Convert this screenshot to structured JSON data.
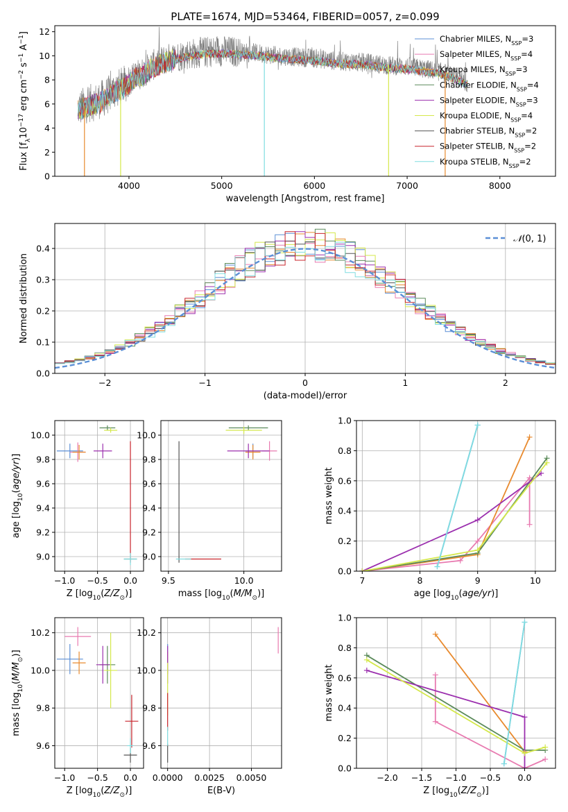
{
  "colors": {
    "Chabrier MILES": "#5b8fd6",
    "Salpeter MILES": "#e87ab0",
    "Kroupa MILES": "#e88a2e",
    "Chabrier ELODIE": "#5a8a5a",
    "Salpeter ELODIE": "#9b2fae",
    "Kroupa ELODIE": "#d4e84a",
    "Chabrier STELIB": "#555555",
    "Salpeter STELIB": "#c8242b",
    "Kroupa STELIB": "#7fdde0"
  },
  "chart_data": [
    {
      "type": "line",
      "title": "PLATE=1674, MJD=53464, FIBERID=0057, z=0.099",
      "xlabel": "wavelength [Angstrom, rest frame]",
      "ylabel": "Flux [f_λ10^-17 erg cm^-2 s^-1 A^-1]",
      "xlim": [
        3200,
        8600
      ],
      "ylim": [
        0,
        12.5
      ],
      "xticks": [
        4000,
        5000,
        6000,
        7000,
        8000
      ],
      "yticks": [
        0,
        2,
        4,
        6,
        8,
        10,
        12
      ],
      "grid": false,
      "legend_position": "right",
      "legend": [
        "Chabrier MILES, N_SSP=3",
        "Salpeter MILES, N_SSP=4",
        "Kroupa MILES, N_SSP=3",
        "Chabrier ELODIE, N_SSP=4",
        "Salpeter ELODIE, N_SSP=3",
        "Kroupa ELODIE, N_SSP=4",
        "Chabrier STELIB, N_SSP=2",
        "Salpeter STELIB, N_SSP=2",
        "Kroupa STELIB, N_SSP=2"
      ],
      "spectrum_envelope": {
        "x": [
          3450,
          3550,
          3650,
          3750,
          3850,
          3950,
          4050,
          4150,
          4250,
          4400,
          4600,
          4800,
          5000,
          5200,
          5400,
          5600,
          5800,
          6000,
          6200,
          6400,
          6600,
          6800,
          7000,
          7200,
          7400,
          7500,
          7650
        ],
        "y": [
          5.6,
          6.0,
          6.2,
          6.6,
          7.2,
          7.6,
          8.3,
          8.6,
          9.2,
          9.7,
          10.1,
          10.3,
          10.4,
          10.3,
          10.2,
          10.0,
          9.9,
          9.8,
          9.6,
          9.5,
          9.4,
          9.2,
          9.1,
          8.9,
          8.6,
          8.3,
          7.8
        ]
      },
      "model_dips": [
        {
          "x": 3520,
          "y": 0
        },
        {
          "x": 3910,
          "y": 0
        },
        {
          "x": 5460,
          "y": 0
        },
        {
          "x": 6800,
          "y": 0
        },
        {
          "x": 7410,
          "y": 0
        }
      ]
    },
    {
      "type": "line",
      "xlabel": "(data-model)/error",
      "ylabel": "Normed distribution",
      "xlim": [
        -2.5,
        2.5
      ],
      "ylim": [
        0,
        0.48
      ],
      "xticks": [
        -2,
        -1,
        0,
        1,
        2
      ],
      "yticks": [
        0.0,
        0.1,
        0.2,
        0.3,
        0.4
      ],
      "grid": true,
      "legend_position": "top-right",
      "legend": [
        "𝒩(0, 1)"
      ],
      "histogram_bin_width": 0.1,
      "histogram_values_approx": [
        0.022,
        0.024,
        0.028,
        0.032,
        0.035,
        0.04,
        0.05,
        0.06,
        0.07,
        0.08,
        0.09,
        0.1,
        0.12,
        0.14,
        0.15,
        0.17,
        0.19,
        0.21,
        0.22,
        0.24,
        0.26,
        0.28,
        0.3,
        0.32,
        0.34,
        0.35,
        0.36,
        0.38,
        0.39,
        0.4,
        0.41,
        0.41,
        0.4,
        0.39,
        0.38,
        0.38,
        0.37,
        0.35,
        0.33,
        0.31,
        0.28,
        0.26,
        0.23,
        0.21,
        0.19,
        0.17,
        0.15,
        0.13,
        0.12,
        0.1,
        0.09,
        0.08,
        0.07,
        0.06,
        0.05,
        0.045,
        0.04,
        0.035,
        0.03,
        0.027,
        0.022,
        0.02,
        0.018,
        0.015,
        0.013,
        0.012,
        0.01,
        0.009,
        0.008,
        0.007
      ]
    },
    {
      "type": "scatter",
      "xlabel": "Z [log10(Z/Z⊙)]",
      "ylabel": "age [log10(age/yr)]",
      "xlim": [
        -1.15,
        0.2
      ],
      "ylim": [
        8.88,
        10.12
      ],
      "xticks": [
        -1.0,
        -0.5,
        0.0
      ],
      "yticks": [
        9.0,
        9.2,
        9.4,
        9.6,
        9.8,
        10.0
      ],
      "grid": true,
      "points": [
        {
          "name": "Chabrier MILES",
          "x": -0.92,
          "y": 9.87,
          "xerr": 0.2,
          "yerr": 0.06
        },
        {
          "name": "Salpeter MILES",
          "x": -0.8,
          "y": 9.86,
          "xerr": 0.12,
          "yerr": 0.08
        },
        {
          "name": "Kroupa MILES",
          "x": -0.78,
          "y": 9.86,
          "xerr": 0.1,
          "yerr": 0.06
        },
        {
          "name": "Chabrier ELODIE",
          "x": -0.35,
          "y": 10.06,
          "xerr": 0.12,
          "yerr": 0.02
        },
        {
          "name": "Salpeter ELODIE",
          "x": -0.42,
          "y": 9.87,
          "xerr": 0.14,
          "yerr": 0.06
        },
        {
          "name": "Kroupa ELODIE",
          "x": -0.3,
          "y": 10.04,
          "xerr": 0.1,
          "yerr": 0.02
        },
        {
          "name": "Chabrier STELIB",
          "x": 0.0,
          "y": 8.98,
          "xerr": 0.1,
          "yerr": 0.0
        },
        {
          "name": "Salpeter STELIB",
          "x": 0.0,
          "y": 9.45,
          "xerr": 0.0,
          "yerr": 0.5
        },
        {
          "name": "Kroupa STELIB",
          "x": 0.0,
          "y": 8.98,
          "xerr": 0.1,
          "yerr": 0.05
        }
      ]
    },
    {
      "type": "scatter",
      "xlabel": "mass [log10(M/M⊙)]",
      "ylabel": "",
      "xlim": [
        9.45,
        10.25
      ],
      "ylim": [
        8.88,
        10.12
      ],
      "xticks": [
        9.5,
        10.0
      ],
      "yticks": [
        9.0,
        9.2,
        9.4,
        9.6,
        9.8,
        10.0
      ],
      "grid": true,
      "points": [
        {
          "name": "Chabrier MILES",
          "x": 10.06,
          "y": 9.87,
          "xerr": 0.05,
          "yerr": 0.06
        },
        {
          "name": "Salpeter MILES",
          "x": 10.17,
          "y": 9.87,
          "xerr": 0.05,
          "yerr": 0.08
        },
        {
          "name": "Kroupa MILES",
          "x": 10.06,
          "y": 9.86,
          "xerr": 0.05,
          "yerr": 0.06
        },
        {
          "name": "Chabrier ELODIE",
          "x": 10.03,
          "y": 10.06,
          "xerr": 0.13,
          "yerr": 0.02
        },
        {
          "name": "Salpeter ELODIE",
          "x": 10.03,
          "y": 9.87,
          "xerr": 0.14,
          "yerr": 0.06
        },
        {
          "name": "Kroupa ELODIE",
          "x": 10.0,
          "y": 10.04,
          "xerr": 0.12,
          "yerr": 0.03
        },
        {
          "name": "Chabrier STELIB",
          "x": 9.57,
          "y": 9.45,
          "xerr": 0.0,
          "yerr": 0.5
        },
        {
          "name": "Salpeter STELIB",
          "x": 9.73,
          "y": 8.98,
          "xerr": 0.12,
          "yerr": 0.0
        },
        {
          "name": "Kroupa STELIB",
          "x": 9.6,
          "y": 8.98,
          "xerr": 0.05,
          "yerr": 0.0
        }
      ]
    },
    {
      "type": "line",
      "xlabel": "age [log10(age/yr)]",
      "ylabel": "mass weight",
      "xlim": [
        6.9,
        10.35
      ],
      "ylim": [
        0,
        1.0
      ],
      "xticks": [
        7,
        8,
        9,
        10
      ],
      "yticks": [
        0.0,
        0.2,
        0.4,
        0.6,
        0.8,
        1.0
      ],
      "grid": true,
      "series": [
        {
          "name": "Chabrier MILES",
          "x": [
            8.3,
            9.0
          ],
          "y": [
            0.03,
            0.97
          ]
        },
        {
          "name": "Salpeter MILES",
          "x": [
            7.0,
            8.7,
            9.0,
            9.9,
            9.9
          ],
          "y": [
            0.0,
            0.07,
            0.2,
            0.62,
            0.31
          ]
        },
        {
          "name": "Kroupa MILES",
          "x": [
            7.0,
            9.0,
            9.9
          ],
          "y": [
            0.0,
            0.11,
            0.89
          ]
        },
        {
          "name": "Chabrier ELODIE",
          "x": [
            7.0,
            9.0,
            10.2
          ],
          "y": [
            0.0,
            0.12,
            0.75
          ]
        },
        {
          "name": "Salpeter ELODIE",
          "x": [
            7.0,
            9.0,
            10.1
          ],
          "y": [
            0.0,
            0.34,
            0.65
          ]
        },
        {
          "name": "Kroupa ELODIE",
          "x": [
            7.0,
            9.0,
            10.2
          ],
          "y": [
            0.0,
            0.14,
            0.72
          ]
        },
        {
          "name": "Kroupa STELIB",
          "x": [
            8.3,
            9.0
          ],
          "y": [
            0.03,
            0.97
          ]
        }
      ]
    },
    {
      "type": "scatter",
      "xlabel": "Z [log10(Z/Z⊙)]",
      "ylabel": "mass [log10(M/M⊙)]",
      "xlim": [
        -1.15,
        0.2
      ],
      "ylim": [
        9.48,
        10.28
      ],
      "xticks": [
        -1.0,
        -0.5,
        0.0
      ],
      "yticks": [
        9.6,
        9.8,
        10.0,
        10.2
      ],
      "grid": true,
      "points": [
        {
          "name": "Chabrier MILES",
          "x": -0.92,
          "y": 10.06,
          "xerr": 0.2,
          "yerr": 0.08
        },
        {
          "name": "Salpeter MILES",
          "x": -0.8,
          "y": 10.18,
          "xerr": 0.2,
          "yerr": 0.05
        },
        {
          "name": "Kroupa MILES",
          "x": -0.78,
          "y": 10.04,
          "xerr": 0.1,
          "yerr": 0.06
        },
        {
          "name": "Chabrier ELODIE",
          "x": -0.35,
          "y": 10.03,
          "xerr": 0.12,
          "yerr": 0.1
        },
        {
          "name": "Salpeter ELODIE",
          "x": -0.42,
          "y": 10.03,
          "xerr": 0.1,
          "yerr": 0.1
        },
        {
          "name": "Kroupa ELODIE",
          "x": -0.3,
          "y": 10.0,
          "xerr": 0.1,
          "yerr": 0.2
        },
        {
          "name": "Chabrier STELIB",
          "x": 0.0,
          "y": 9.55,
          "xerr": 0.1,
          "yerr": 0.04
        },
        {
          "name": "Salpeter STELIB",
          "x": 0.02,
          "y": 9.73,
          "xerr": 0.1,
          "yerr": 0.14
        },
        {
          "name": "Kroupa STELIB",
          "x": 0.0,
          "y": 9.6,
          "xerr": 0.05,
          "yerr": 0.04
        }
      ]
    },
    {
      "type": "scatter",
      "xlabel": "E(B-V)",
      "ylabel": "",
      "xlim": [
        -0.0004,
        0.0068
      ],
      "ylim": [
        9.48,
        10.28
      ],
      "xticks": [
        0.0,
        0.0025,
        0.005
      ],
      "xticklabels": [
        "0.0000",
        "0.0025",
        "0.0050"
      ],
      "yticks": [
        9.6,
        9.8,
        10.0,
        10.2
      ],
      "grid": true,
      "points": [
        {
          "name": "Chabrier MILES",
          "x": 0.0,
          "y": 10.06,
          "xerr": 0.0,
          "yerr": 0.08
        },
        {
          "name": "Salpeter MILES",
          "x": 0.0066,
          "y": 10.16,
          "xerr": 0.0,
          "yerr": 0.07
        },
        {
          "name": "Kroupa MILES",
          "x": 0.0,
          "y": 10.04,
          "xerr": 0.0,
          "yerr": 0.06
        },
        {
          "name": "Salpeter ELODIE",
          "x": 0.0,
          "y": 10.03,
          "xerr": 0.0,
          "yerr": 0.1
        },
        {
          "name": "Kroupa ELODIE",
          "x": 0.0,
          "y": 9.9,
          "xerr": 0.0,
          "yerr": 0.14
        },
        {
          "name": "Chabrier STELIB",
          "x": 0.0,
          "y": 9.56,
          "xerr": 0.0,
          "yerr": 0.05
        },
        {
          "name": "Salpeter STELIB",
          "x": 0.0,
          "y": 9.78,
          "xerr": 0.0,
          "yerr": 0.1
        },
        {
          "name": "Kroupa STELIB",
          "x": 0.0,
          "y": 9.65,
          "xerr": 0.0,
          "yerr": 0.05
        }
      ]
    },
    {
      "type": "line",
      "xlabel": "Z [log10(Z/Z⊙)]",
      "ylabel": "mass weight",
      "xlim": [
        -2.45,
        0.45
      ],
      "ylim": [
        0,
        1.0
      ],
      "xticks": [
        -2.0,
        -1.5,
        -1.0,
        -0.5,
        0.0
      ],
      "yticks": [
        0.0,
        0.2,
        0.4,
        0.6,
        0.8,
        1.0
      ],
      "grid": true,
      "series": [
        {
          "name": "Chabrier MILES",
          "x": [
            -0.3,
            0.0
          ],
          "y": [
            0.03,
            0.97
          ]
        },
        {
          "name": "Salpeter MILES",
          "x": [
            -1.3,
            -1.3,
            0.0,
            0.3
          ],
          "y": [
            0.62,
            0.31,
            0.0,
            0.06
          ]
        },
        {
          "name": "Kroupa MILES",
          "x": [
            -1.3,
            0.0
          ],
          "y": [
            0.89,
            0.11
          ]
        },
        {
          "name": "Chabrier ELODIE",
          "x": [
            -2.3,
            0.0,
            0.3
          ],
          "y": [
            0.75,
            0.12,
            0.12
          ]
        },
        {
          "name": "Salpeter ELODIE",
          "x": [
            -2.3,
            0.0,
            0.0
          ],
          "y": [
            0.65,
            0.34,
            0.0
          ]
        },
        {
          "name": "Kroupa ELODIE",
          "x": [
            -2.3,
            0.0,
            0.3
          ],
          "y": [
            0.72,
            0.1,
            0.14
          ]
        },
        {
          "name": "Kroupa STELIB",
          "x": [
            -0.3,
            0.0
          ],
          "y": [
            0.03,
            0.97
          ]
        }
      ]
    }
  ]
}
